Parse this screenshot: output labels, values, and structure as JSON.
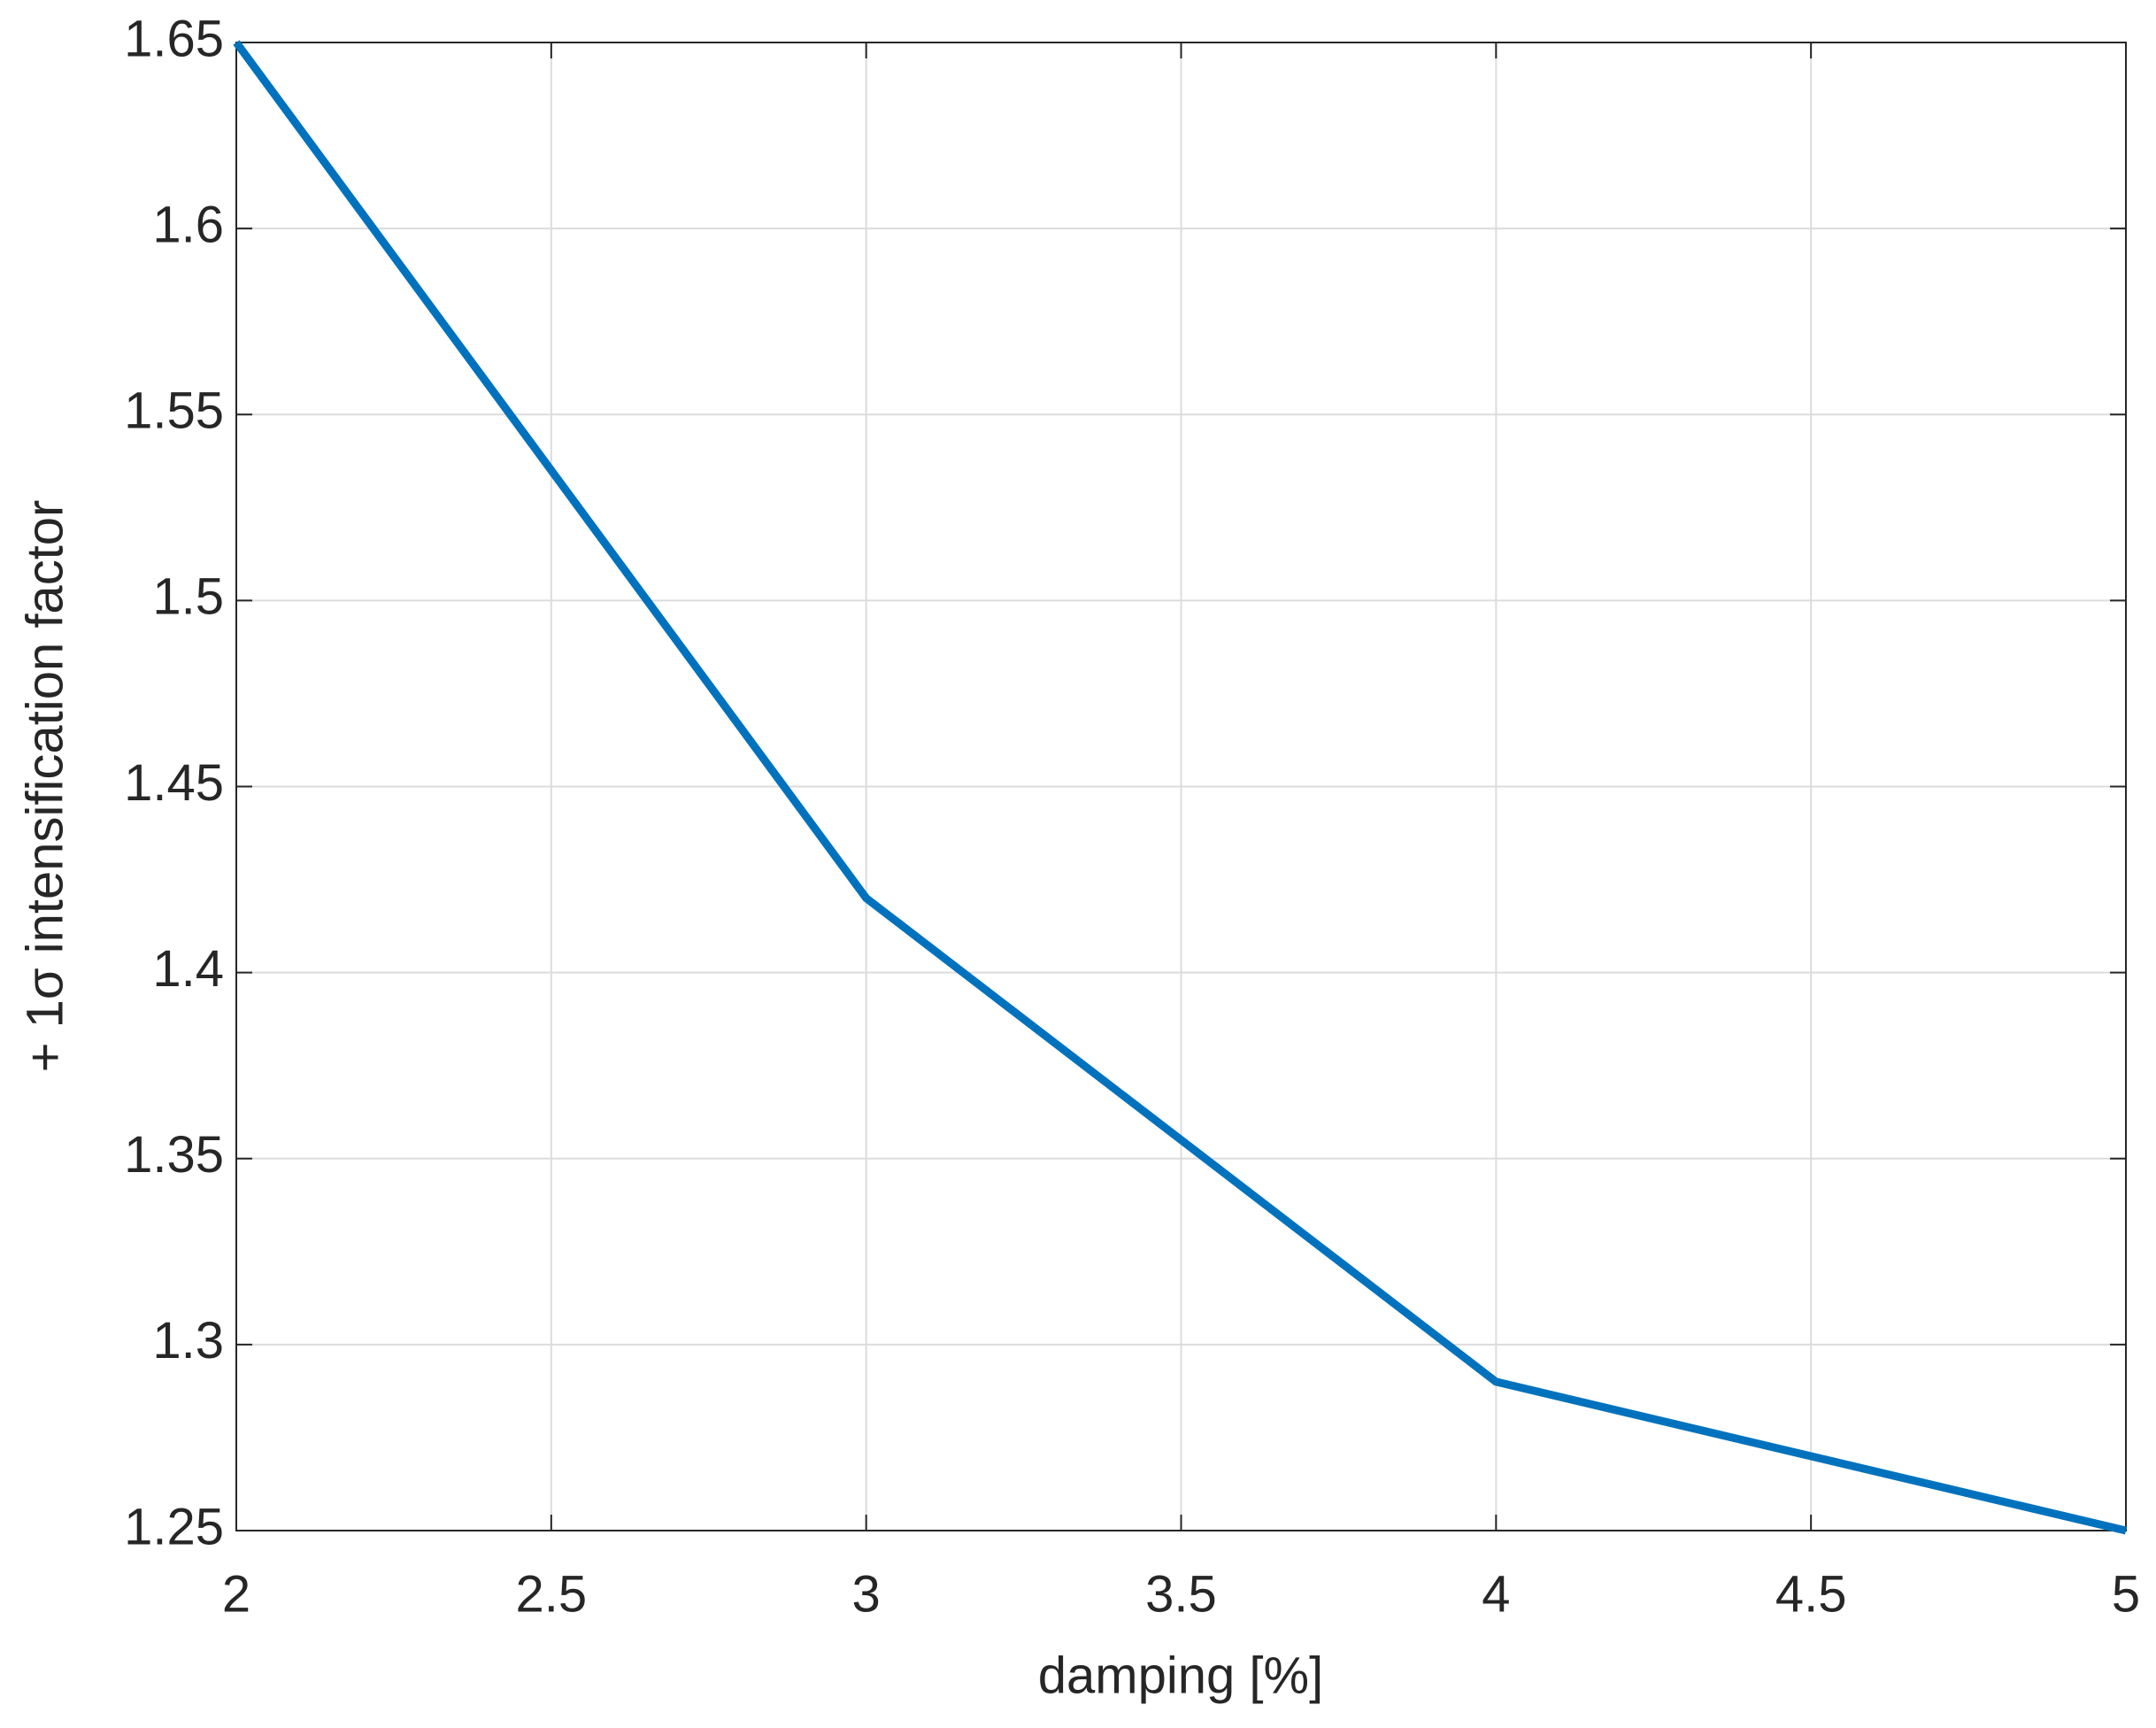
{
  "chart_data": {
    "type": "line",
    "x_label": "damping [%]",
    "y_label": "+ 1σ intensification factor",
    "x": [
      2,
      3,
      4,
      5
    ],
    "series": [
      {
        "color": "#0072BD",
        "values": [
          1.65,
          1.42,
          1.29,
          1.25
        ]
      }
    ],
    "xlim": [
      2,
      5
    ],
    "xticks": [
      2,
      2.5,
      3,
      3.5,
      4,
      4.5,
      5
    ],
    "ylim": [
      1.25,
      1.65
    ],
    "yticks": [
      1.25,
      1.3,
      1.35,
      1.4,
      1.45,
      1.5,
      1.55,
      1.6,
      1.65
    ],
    "grid": true
  }
}
